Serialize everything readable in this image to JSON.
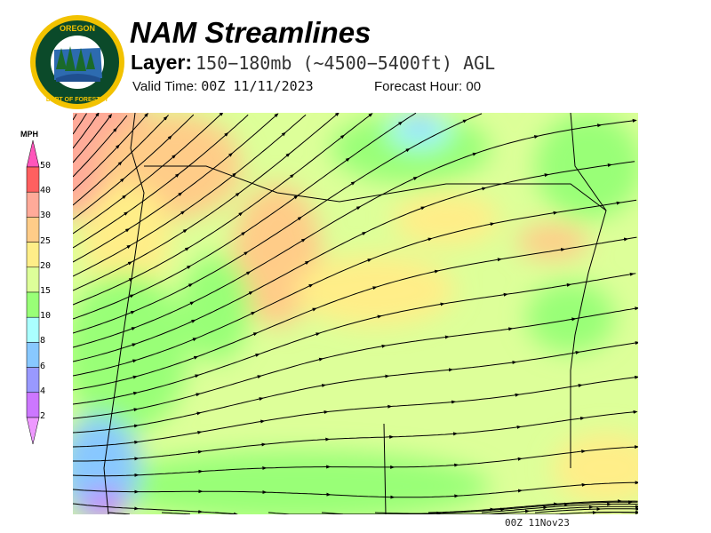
{
  "logo": {
    "text_top": "OREGON",
    "text_bottom": "DEPARTMENT OF FORESTRY",
    "colors": {
      "ring": "#f2c200",
      "field": "#0b4a2a",
      "water": "#1f4f8f"
    }
  },
  "header": {
    "title": "NAM Streamlines",
    "layer_label": "Layer:",
    "layer_value": "150−180mb (~4500−5400ft) AGL",
    "valid_label": "Valid Time:",
    "valid_value": "00Z 11/11/2023",
    "forecast_label": "Forecast Hour:",
    "forecast_value": "00"
  },
  "colorbar": {
    "unit": "MPH",
    "ticks": [
      "50",
      "40",
      "30",
      "25",
      "20",
      "15",
      "10",
      "8",
      "6",
      "4",
      "2"
    ],
    "colors": {
      "over": "#ff55bb",
      "40-50": "#ff6060",
      "30-40": "#ffaa99",
      "25-30": "#ffcc88",
      "20-25": "#ffee88",
      "15-20": "#ddff99",
      "10-15": "#99ff77",
      "8-10": "#aaffff",
      "6-8": "#88c8ff",
      "4-6": "#9999ff",
      "2-4": "#cc77ff",
      "under": "#ee99ff"
    }
  },
  "map": {
    "field": "wind speed",
    "overlay": "streamlines"
  },
  "footer": {
    "stamp": "00Z 11Nov23"
  }
}
